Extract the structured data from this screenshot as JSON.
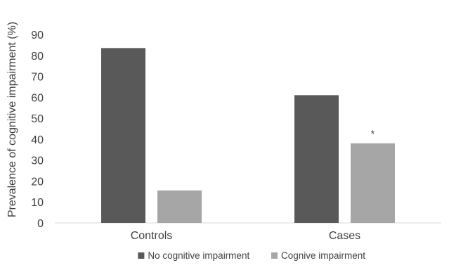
{
  "chart_data": {
    "type": "bar",
    "title": "",
    "xlabel": "",
    "ylabel": "Prevalence of cognitive impairment (%)",
    "ylim": [
      0,
      90
    ],
    "yticks": [
      0,
      10,
      20,
      30,
      40,
      50,
      60,
      70,
      80,
      90
    ],
    "categories": [
      "Controls",
      "Cases"
    ],
    "series": [
      {
        "name": "No cognitive impairment",
        "color": "#595959",
        "values": [
          83.5,
          61
        ]
      },
      {
        "name": "Cognive impairment",
        "color": "#a6a6a6",
        "values": [
          15.5,
          38
        ]
      }
    ],
    "annotations": [
      {
        "text": "*",
        "category": "Cases",
        "series": "Cognive impairment"
      }
    ],
    "grid": false,
    "legend_position": "bottom"
  }
}
